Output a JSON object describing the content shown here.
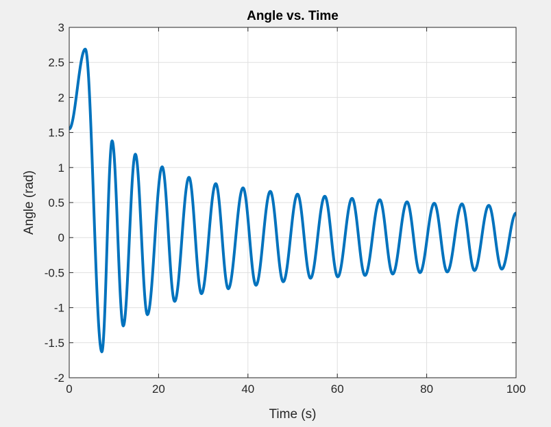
{
  "colors": {
    "figure_background": "#f0f0f0",
    "axes_background": "#ffffff",
    "grid": "#dfdfdf",
    "axis": "#262626",
    "series": "#0072bd"
  },
  "chart_data": {
    "type": "line",
    "title": "Angle vs. Time",
    "xlabel": "Time (s)",
    "ylabel": "Angle (rad)",
    "xlim": [
      0,
      100
    ],
    "ylim": [
      -2,
      3
    ],
    "xticks": [
      0,
      20,
      40,
      60,
      80,
      100
    ],
    "xtick_labels": [
      "0",
      "20",
      "40",
      "60",
      "80",
      "100"
    ],
    "yticks": [
      -2,
      -1.5,
      -1,
      -0.5,
      0,
      0.5,
      1,
      1.5,
      2,
      2.5,
      3
    ],
    "ytick_labels": [
      "-2",
      "-1.5",
      "-1",
      "-0.5",
      "0",
      "0.5",
      "1",
      "1.5",
      "2",
      "2.5",
      "3"
    ],
    "grid": true,
    "legend": "none",
    "series": [
      {
        "color": "#0072bd",
        "x": [
          0,
          3.6,
          7.3,
          9.6,
          12.1,
          14.8,
          17.5,
          20.8,
          23.6,
          26.8,
          29.6,
          32.8,
          35.6,
          38.9,
          41.8,
          45.0,
          47.9,
          51.1,
          54.0,
          57.2,
          60.1,
          63.3,
          66.2,
          69.5,
          72.4,
          75.6,
          78.5,
          81.7,
          84.6,
          87.9,
          90.7,
          93.9,
          96.8,
          100
        ],
        "y": [
          1.55,
          2.69,
          -1.63,
          1.38,
          -1.26,
          1.19,
          -1.1,
          1.01,
          -0.91,
          0.86,
          -0.8,
          0.77,
          -0.73,
          0.71,
          -0.68,
          0.66,
          -0.63,
          0.62,
          -0.58,
          0.59,
          -0.56,
          0.56,
          -0.54,
          0.54,
          -0.52,
          0.51,
          -0.5,
          0.49,
          -0.49,
          0.48,
          -0.47,
          0.46,
          -0.45,
          0.35
        ]
      }
    ]
  }
}
